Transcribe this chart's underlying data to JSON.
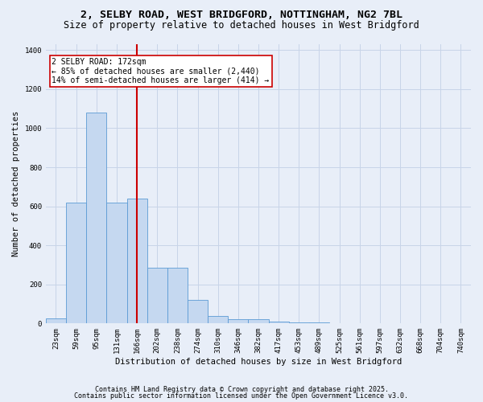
{
  "title_line1": "2, SELBY ROAD, WEST BRIDGFORD, NOTTINGHAM, NG2 7BL",
  "title_line2": "Size of property relative to detached houses in West Bridgford",
  "xlabel": "Distribution of detached houses by size in West Bridgford",
  "ylabel": "Number of detached properties",
  "bin_labels": [
    "23sqm",
    "59sqm",
    "95sqm",
    "131sqm",
    "166sqm",
    "202sqm",
    "238sqm",
    "274sqm",
    "310sqm",
    "346sqm",
    "382sqm",
    "417sqm",
    "453sqm",
    "489sqm",
    "525sqm",
    "561sqm",
    "597sqm",
    "632sqm",
    "668sqm",
    "704sqm",
    "740sqm"
  ],
  "bar_heights": [
    25,
    620,
    1080,
    620,
    640,
    285,
    285,
    120,
    40,
    20,
    20,
    10,
    5,
    5,
    0,
    0,
    0,
    0,
    0,
    0,
    0
  ],
  "bar_color": "#c5d8f0",
  "bar_edgecolor": "#5b9bd5",
  "grid_color": "#c8d4e8",
  "bg_color": "#e8eef8",
  "red_line_bin": 4,
  "red_line_color": "#cc0000",
  "annotation_text": "2 SELBY ROAD: 172sqm\n← 85% of detached houses are smaller (2,440)\n14% of semi-detached houses are larger (414) →",
  "annotation_box_color": "#ffffff",
  "annotation_box_edgecolor": "#cc0000",
  "ylim": [
    0,
    1430
  ],
  "yticks": [
    0,
    200,
    400,
    600,
    800,
    1000,
    1200,
    1400
  ],
  "footer_line1": "Contains HM Land Registry data © Crown copyright and database right 2025.",
  "footer_line2": "Contains public sector information licensed under the Open Government Licence v3.0.",
  "title_fontsize": 9.5,
  "subtitle_fontsize": 8.5,
  "axis_label_fontsize": 7.5,
  "tick_fontsize": 6.5,
  "annotation_fontsize": 7,
  "footer_fontsize": 6
}
